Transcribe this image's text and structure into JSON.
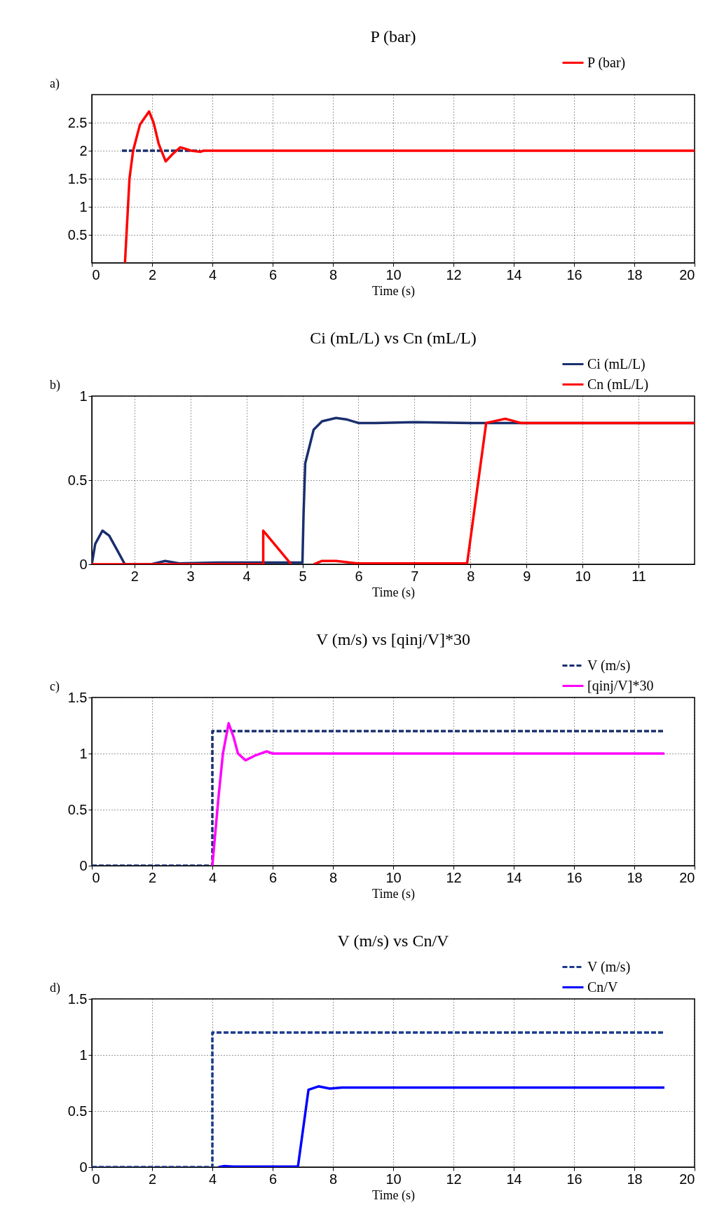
{
  "chart_data": [
    {
      "type": "line",
      "title": "P (bar)",
      "xlabel": "Time (s)",
      "annotations": [
        "a)"
      ],
      "xlim": [
        0,
        20
      ],
      "xticks": [
        0,
        2,
        4,
        6,
        8,
        10,
        12,
        14,
        16,
        18,
        20
      ],
      "ylim": [
        0,
        3
      ],
      "yticks": [
        0.5,
        1,
        1.5,
        2,
        2.5
      ],
      "grid": true,
      "legend": "top right",
      "series": [
        {
          "color": "#1a2f6e",
          "line_style": "dashed",
          "x": [
            1,
            3.6
          ],
          "values": [
            2,
            2
          ]
        },
        {
          "name": "P (bar)",
          "color": "#ff0000",
          "line_style": "solid",
          "x": [
            1.1,
            1.25,
            1.37,
            1.6,
            1.9,
            2.05,
            2.22,
            2.45,
            2.7,
            2.94,
            3.3,
            3.6,
            3.7,
            20
          ],
          "values": [
            0,
            1.5,
            2.0,
            2.47,
            2.7,
            2.5,
            2.12,
            1.81,
            1.95,
            2.06,
            2.0,
            1.98,
            2.0,
            2.0
          ]
        }
      ]
    },
    {
      "type": "line",
      "title": "Ci (mL/L) vs Cn (mL/L)",
      "xlabel": "Time (s)",
      "annotations": [
        "b)"
      ],
      "xlim": [
        1.24,
        12
      ],
      "xticks": [
        2,
        3,
        4,
        5,
        6,
        7,
        8,
        9,
        10,
        11
      ],
      "ylim": [
        0,
        1
      ],
      "yticks": [
        0,
        0.5,
        1
      ],
      "grid": true,
      "legend": "top right",
      "series": [
        {
          "name": "Ci (mL/L)",
          "color": "#1a2f6e",
          "line_style": "solid",
          "x": [
            1.24,
            1.3,
            1.43,
            1.55,
            1.7,
            1.83,
            2.3,
            2.55,
            2.8,
            3.5,
            5.0,
            5.02,
            5.05,
            5.2,
            5.35,
            5.6,
            5.8,
            6.0,
            6.3,
            7,
            8,
            12
          ],
          "values": [
            0,
            0.12,
            0.2,
            0.17,
            0.08,
            0,
            0,
            0.02,
            0.005,
            0.01,
            0.01,
            0.3,
            0.6,
            0.8,
            0.85,
            0.87,
            0.86,
            0.84,
            0.84,
            0.845,
            0.84,
            0.84
          ]
        },
        {
          "name": "Cn (mL/L)",
          "color": "#ff0000",
          "line_style": "solid",
          "x": [
            1.24,
            3.8,
            4.3,
            4.3,
            4.8,
            5.0,
            5.2,
            5.35,
            5.6,
            6.0,
            7.94,
            8.28,
            8.62,
            8.9,
            9.5,
            12
          ],
          "values": [
            0,
            0,
            0,
            0.2,
            0,
            null,
            0,
            0.02,
            0.02,
            0.005,
            0.005,
            0.84,
            0.865,
            0.84,
            0.84,
            0.84
          ]
        }
      ]
    },
    {
      "type": "line",
      "title": "V (m/s) vs [qinj/V]*30",
      "xlabel": "Time (s)",
      "annotations": [
        "c)"
      ],
      "xlim": [
        0,
        20
      ],
      "xticks": [
        0,
        2,
        4,
        6,
        8,
        10,
        12,
        14,
        16,
        18,
        20
      ],
      "ylim": [
        0,
        1.5
      ],
      "yticks": [
        0,
        0.5,
        1,
        1.5
      ],
      "grid": true,
      "legend": "top right",
      "series": [
        {
          "name": "V (m/s)",
          "color": "#1a2f6e",
          "line_style": "dashed",
          "x": [
            0,
            4,
            4,
            19
          ],
          "values": [
            0,
            0,
            1.2,
            1.2
          ]
        },
        {
          "name": "[qinj/V]*30",
          "color": "#ff00ff",
          "line_style": "solid",
          "x": [
            4,
            4.2,
            4.35,
            4.54,
            4.7,
            4.85,
            5.1,
            5.4,
            5.8,
            6.0,
            19
          ],
          "values": [
            0,
            0.6,
            1.0,
            1.27,
            1.15,
            1.0,
            0.94,
            0.98,
            1.02,
            1.0,
            1.0
          ]
        }
      ]
    },
    {
      "type": "line",
      "title": "V (m/s) vs Cn/V",
      "xlabel": "Time (s)",
      "annotations": [
        "d)"
      ],
      "xlim": [
        0,
        20
      ],
      "xticks": [
        0,
        2,
        4,
        6,
        8,
        10,
        12,
        14,
        16,
        18,
        20
      ],
      "ylim": [
        0,
        1.5
      ],
      "yticks": [
        0,
        0.5,
        1,
        1.5
      ],
      "grid": true,
      "legend": "top right",
      "series": [
        {
          "name": "V (m/s)",
          "color": "#1a3a8f",
          "line_style": "dashed",
          "x": [
            0,
            4,
            4,
            19
          ],
          "values": [
            0,
            0,
            1.2,
            1.2
          ]
        },
        {
          "name": "Cn/V",
          "color": "#0000ff",
          "line_style": "solid",
          "x": [
            4.2,
            4.4,
            4.7,
            6.84,
            7.19,
            7.52,
            7.9,
            8.3,
            19
          ],
          "values": [
            0,
            0.01,
            0.005,
            0.005,
            0.69,
            0.72,
            0.7,
            0.71,
            0.71
          ]
        }
      ]
    }
  ]
}
